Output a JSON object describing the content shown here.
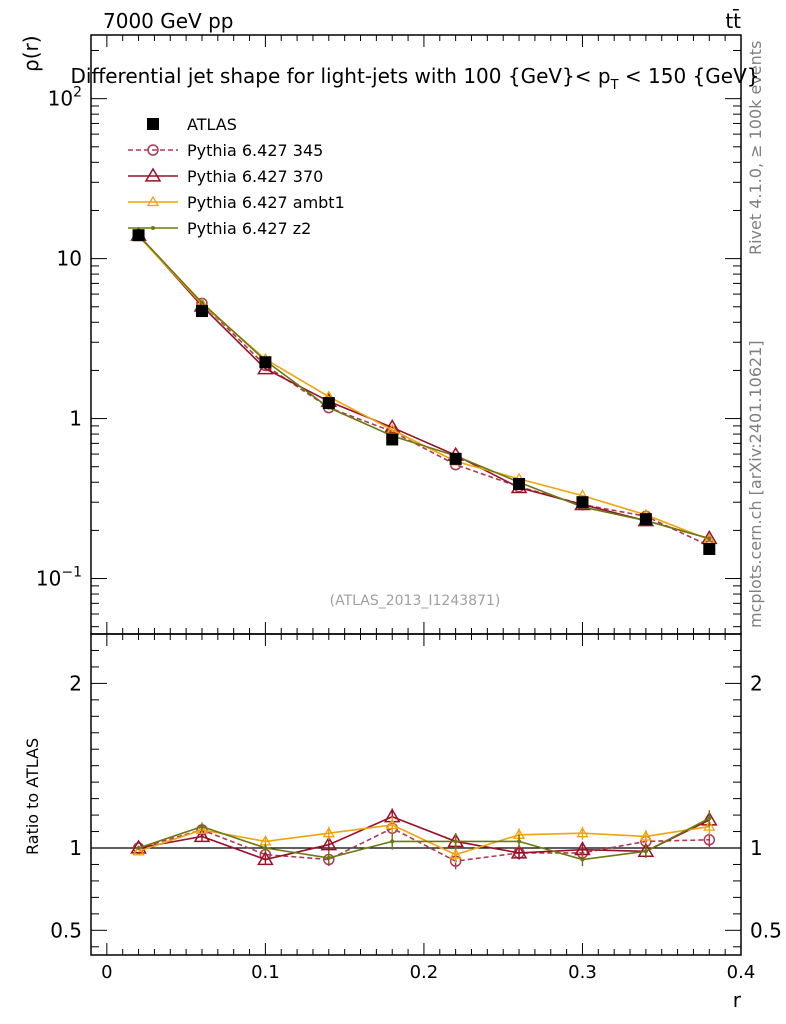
{
  "header": {
    "energy_label": "7000 GeV pp",
    "process_label": "tt̄",
    "rivet_label": "Rivet 4.1.0, ≥ 100k events",
    "mcplots_label": "mcplots.cern.ch [arXiv:2401.10621]"
  },
  "chart_data": [
    {
      "type": "line",
      "title": "Differential jet shape for light-jets with 100 {GeV}< p_T < 150 {GeV}",
      "title_parts": {
        "before": "Differential jet shape for light-jets with 100 {GeV}< p",
        "subscript": "T",
        "after": " < 150 {GeV}"
      },
      "ylabel": "ρ(r)",
      "yscale": "log",
      "ylim": [
        0.045,
        250
      ],
      "xlim": [
        -0.01,
        0.4
      ],
      "y_ticks": [
        {
          "value": 0.1,
          "base": "10",
          "exp": "−1"
        },
        {
          "value": 1,
          "label": "1"
        },
        {
          "value": 10,
          "label": "10"
        },
        {
          "value": 100,
          "base": "10",
          "exp": "2"
        }
      ],
      "watermark": "(ATLAS_2013_I1243871)",
      "x": [
        0.02,
        0.06,
        0.1,
        0.14,
        0.18,
        0.22,
        0.26,
        0.3,
        0.34,
        0.38
      ],
      "series": [
        {
          "name": "ATLAS",
          "color": "#000000",
          "marker": "square",
          "line": "none",
          "values": [
            14.0,
            4.7,
            2.25,
            1.25,
            0.74,
            0.56,
            0.39,
            0.3,
            0.235,
            0.153
          ]
        },
        {
          "name": "Pythia 6.427 345",
          "color": "#b03a55",
          "marker": "circle-open",
          "line": "dashed",
          "values": [
            14.0,
            5.25,
            2.15,
            1.17,
            0.83,
            0.515,
            0.375,
            0.29,
            0.245,
            0.16
          ]
        },
        {
          "name": "Pythia 6.427 370",
          "color": "#9a1028",
          "marker": "triangle-open",
          "line": "solid",
          "values": [
            14.0,
            5.05,
            2.05,
            1.28,
            0.88,
            0.59,
            0.37,
            0.29,
            0.23,
            0.178
          ]
        },
        {
          "name": "Pythia 6.427 ambt1",
          "color": "#f0a30a",
          "marker": "triangle-open-small",
          "line": "solid",
          "values": [
            13.8,
            5.2,
            2.35,
            1.37,
            0.85,
            0.54,
            0.42,
            0.33,
            0.25,
            0.175
          ]
        },
        {
          "name": "Pythia 6.427 z2",
          "color": "#6b7a0f",
          "marker": "dot",
          "line": "solid",
          "values": [
            14.0,
            5.3,
            2.3,
            1.17,
            0.78,
            0.585,
            0.4,
            0.28,
            0.23,
            0.178
          ]
        }
      ]
    },
    {
      "type": "line",
      "title": "",
      "ylabel": "Ratio to ATLAS",
      "xlabel": "r",
      "ylim": [
        0.35,
        2.3
      ],
      "xlim": [
        -0.01,
        0.4
      ],
      "y_ticks": [
        0.5,
        1,
        2
      ],
      "y_tick_labels": [
        "0.5",
        "1",
        "2"
      ],
      "x_ticks": [
        0,
        0.1,
        0.2,
        0.3,
        0.4
      ],
      "x_tick_labels": [
        "0",
        "0.1",
        "0.2",
        "0.3",
        "0.4"
      ],
      "reference_line": 1,
      "series": [
        {
          "name": "Pythia 6.427 345",
          "values": [
            1.0,
            1.11,
            0.96,
            0.93,
            1.12,
            0.92,
            0.97,
            0.97,
            1.04,
            1.05
          ]
        },
        {
          "name": "Pythia 6.427 370",
          "values": [
            1.0,
            1.07,
            0.93,
            1.02,
            1.19,
            1.04,
            0.97,
            0.99,
            0.98,
            1.17
          ]
        },
        {
          "name": "Pythia 6.427 ambt1",
          "values": [
            0.98,
            1.11,
            1.04,
            1.09,
            1.14,
            0.96,
            1.08,
            1.09,
            1.07,
            1.13
          ]
        },
        {
          "name": "Pythia 6.427 z2",
          "values": [
            1.0,
            1.13,
            1.0,
            0.94,
            1.04,
            1.04,
            1.04,
            0.93,
            0.98,
            1.18
          ]
        }
      ],
      "errors": [
        0.0,
        0.025,
        0.025,
        0.04,
        0.05,
        0.05,
        0.04,
        0.04,
        0.04,
        0.05
      ]
    }
  ]
}
